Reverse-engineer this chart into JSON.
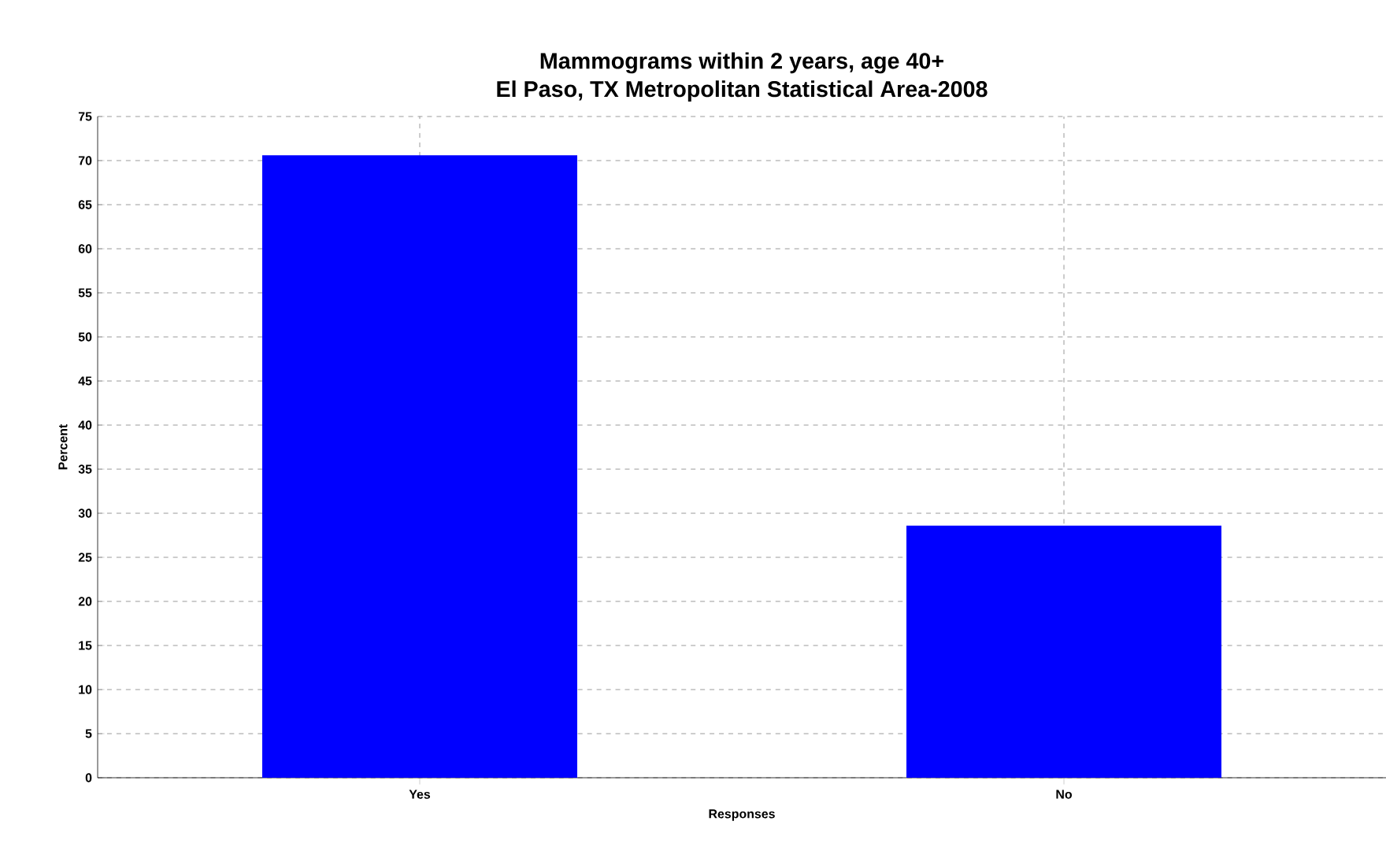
{
  "chart_data": {
    "type": "bar",
    "title": "Mammograms within 2 years, age 40+",
    "subtitle": "El Paso, TX Metropolitan Statistical Area-2008",
    "xlabel": "Responses",
    "ylabel": "Percent",
    "categories": [
      "Yes",
      "No"
    ],
    "values": [
      70.6,
      28.6
    ],
    "color": "#0000ff",
    "ylim": [
      0,
      75
    ],
    "yticks": [
      0,
      5,
      10,
      15,
      20,
      25,
      30,
      35,
      40,
      45,
      50,
      55,
      60,
      65,
      70,
      75
    ],
    "grid": true
  }
}
